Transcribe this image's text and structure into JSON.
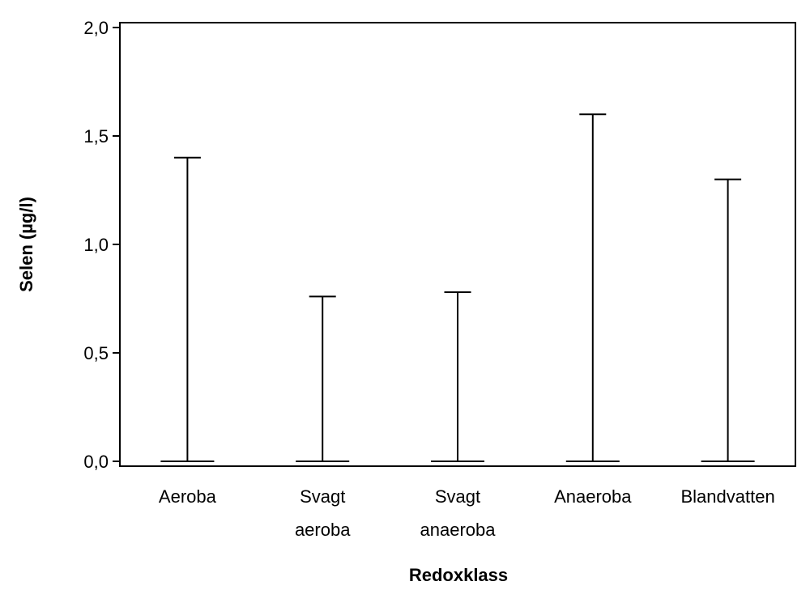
{
  "chart_data": {
    "type": "range",
    "title": "",
    "xlabel": "Redoxklass",
    "ylabel": "Selen (µg/l)",
    "ylim": [
      0,
      2.0
    ],
    "yticks": [
      "0,0",
      "0,5",
      "1,0",
      "1,5",
      "2,0"
    ],
    "ytick_values": [
      0,
      0.5,
      1.0,
      1.5,
      2.0
    ],
    "grid": false,
    "legend": "none",
    "categories": [
      [
        "Aeroba"
      ],
      [
        "Svagt",
        "aeroba"
      ],
      [
        "Svagt",
        "anaeroba"
      ],
      [
        "Anaeroba"
      ],
      [
        "Blandvatten"
      ]
    ],
    "series": [
      {
        "min": [
          0.0,
          0.0,
          0.0,
          0.0,
          0.0
        ],
        "max": [
          1.4,
          0.76,
          0.78,
          1.6,
          1.3
        ]
      }
    ],
    "colors": {
      "line": "#000000",
      "frame": "#000000"
    }
  }
}
